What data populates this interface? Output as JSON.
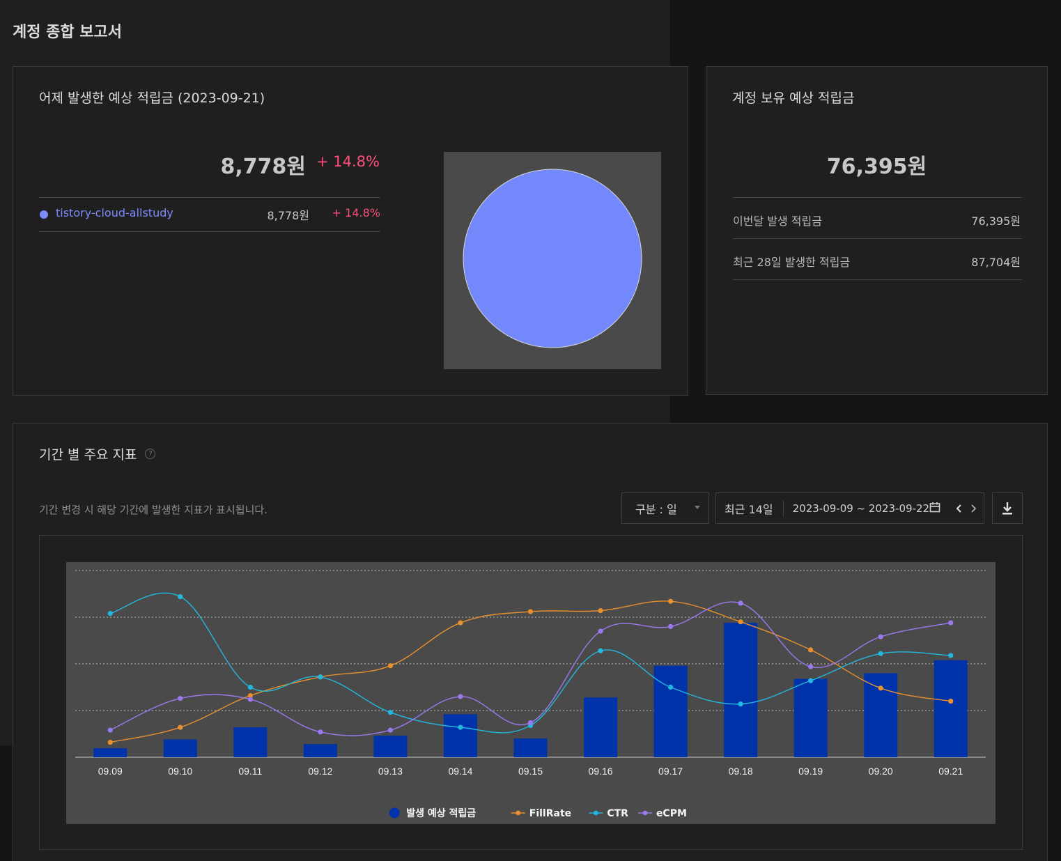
{
  "page": {
    "title": "계정 종합 보고서"
  },
  "yesterday_card": {
    "title": "어제 발생한 예상 적립금 (2023-09-21)",
    "amount": "8,778원",
    "change": "+ 14.8%",
    "site": {
      "name": "tistory-cloud-allstudy",
      "amount": "8,778원",
      "change": "+ 14.8%",
      "color": "#7b8cff"
    }
  },
  "balance_card": {
    "title": "계정 보유 예상 적립금",
    "amount": "76,395원",
    "rows": [
      {
        "label": "이번달 발생 적립금",
        "value": "76,395원"
      },
      {
        "label": "최근 28일 발생한 적립금",
        "value": "87,704원"
      }
    ]
  },
  "trend_card": {
    "title": "기간 별 주요 지표",
    "help_icon": "question-circle-icon",
    "description": "기간 변경 시 해당 기간에 발생한 지표가 표시됩니다.",
    "period_select": {
      "value": "구분 : 일"
    },
    "date_range": {
      "preset": "최근 14일",
      "range": "2023-09-09 ~ 2023-09-22"
    },
    "icons": {
      "calendar": "calendar-icon",
      "prev": "chevron-left-icon",
      "next": "chevron-right-icon",
      "download": "download-icon"
    }
  },
  "chart_data": {
    "type": "bar",
    "categories": [
      "09.09",
      "09.10",
      "09.11",
      "09.12",
      "09.13",
      "09.14",
      "09.15",
      "09.16",
      "09.17",
      "09.18",
      "09.19",
      "09.20",
      "09.21"
    ],
    "series": [
      {
        "name": "발생 예상 적립금",
        "type": "bar",
        "color": "#0033aa",
        "values": [
          0.048,
          0.095,
          0.16,
          0.07,
          0.115,
          0.23,
          0.1,
          0.32,
          0.49,
          0.72,
          0.42,
          0.45,
          0.52
        ]
      },
      {
        "name": "FillRate",
        "type": "line",
        "color": "#e8902e",
        "values": [
          0.08,
          0.16,
          0.33,
          0.43,
          0.49,
          0.72,
          0.78,
          0.785,
          0.835,
          0.725,
          0.575,
          0.37,
          0.3
        ]
      },
      {
        "name": "CTR",
        "type": "line",
        "color": "#23b8e0",
        "values": [
          0.77,
          0.86,
          0.375,
          0.43,
          0.24,
          0.16,
          0.17,
          0.57,
          0.375,
          0.285,
          0.41,
          0.555,
          0.545
        ]
      },
      {
        "name": "eCPM",
        "type": "line",
        "color": "#9b79ef",
        "values": [
          0.145,
          0.315,
          0.31,
          0.135,
          0.145,
          0.325,
          0.185,
          0.675,
          0.7,
          0.825,
          0.485,
          0.645,
          0.72
        ]
      }
    ],
    "ylim": [
      0,
      1
    ],
    "grid": true,
    "legend": "bottom-center"
  }
}
